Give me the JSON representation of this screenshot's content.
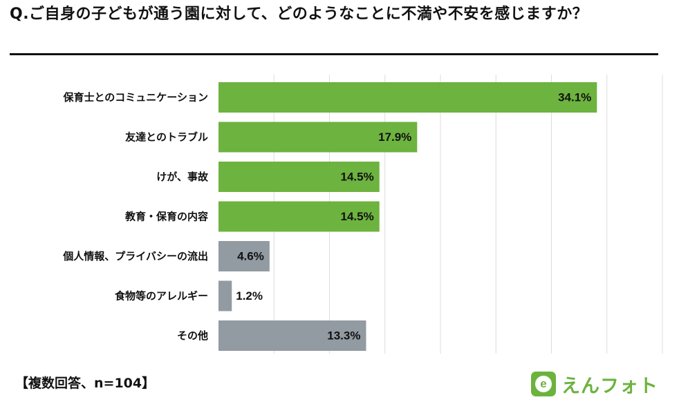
{
  "title": "Q.ご自身の子どもが通う園に対して、どのようなことに不満や不安を感じますか？",
  "footnote": "【複数回答、n=104】",
  "logo": {
    "icon": "e",
    "text": "えんフォト",
    "color": "#6cb33e"
  },
  "chart_data": {
    "type": "bar",
    "orientation": "horizontal",
    "categories": [
      "保育士とのコミュニケーション",
      "友達とのトラブル",
      "けが、事故",
      "教育・保育の内容",
      "個人情報、プライバシーの流出",
      "食物等のアレルギー",
      "その他"
    ],
    "values": [
      34.1,
      17.9,
      14.5,
      14.5,
      4.6,
      1.2,
      13.3
    ],
    "labels": [
      "34.1%",
      "17.9%",
      "14.5%",
      "14.5%",
      "4.6%",
      "1.2%",
      "13.3%"
    ],
    "unit": "%",
    "colors": [
      "#6db33f",
      "#6db33f",
      "#6db33f",
      "#6db33f",
      "#929aa2",
      "#929aa2",
      "#929aa2"
    ],
    "xlim": [
      0,
      40
    ],
    "grid": true,
    "gridline_step": 5
  }
}
